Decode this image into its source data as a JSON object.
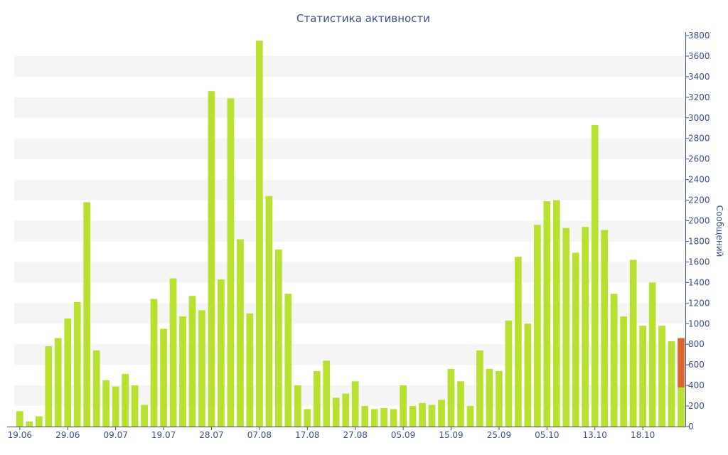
{
  "chart_data": {
    "type": "bar",
    "title": "Статистика активности",
    "xlabel": "",
    "ylabel": "Сообщений",
    "ylim": [
      0,
      3800
    ],
    "y_ticks": [
      0,
      200,
      400,
      600,
      800,
      1000,
      1200,
      1400,
      1600,
      1800,
      2000,
      2200,
      2400,
      2600,
      2800,
      3000,
      3200,
      3400,
      3600,
      3800
    ],
    "x_tick_labels": [
      "19.06",
      "29.06",
      "09.07",
      "19.07",
      "28.07",
      "07.08",
      "17.08",
      "27.08",
      "05.09",
      "15.09",
      "25.09",
      "05.10",
      "13.10",
      "18.10"
    ],
    "x_tick_bar_index": [
      0,
      5,
      10,
      15,
      20,
      25,
      30,
      35,
      40,
      45,
      50,
      55,
      60,
      65
    ],
    "axis_position": "right",
    "grid": "alternating horizontal bands",
    "colors": {
      "bar": "#b8e02e",
      "highlight": "#e0642e",
      "band": "#f5f5f5",
      "axis": "#3a4f8a",
      "text": "#3a4f8a"
    },
    "values": [
      150,
      50,
      100,
      780,
      860,
      1050,
      1210,
      2180,
      740,
      450,
      390,
      510,
      400,
      210,
      1240,
      950,
      1440,
      1070,
      1270,
      1130,
      3260,
      1430,
      3190,
      1820,
      1100,
      3750,
      2240,
      1720,
      1290,
      400,
      170,
      540,
      640,
      280,
      320,
      440,
      200,
      170,
      180,
      170,
      400,
      200,
      230,
      210,
      260,
      560,
      440,
      200,
      740,
      560,
      540,
      1030,
      1650,
      1000,
      1960,
      2190,
      2200,
      1930,
      1690,
      1940,
      2930,
      1910,
      1290,
      1070,
      1620,
      980,
      1400,
      980,
      830,
      860
    ],
    "highlight_last": {
      "total": 860,
      "lower_part": 380
    }
  }
}
